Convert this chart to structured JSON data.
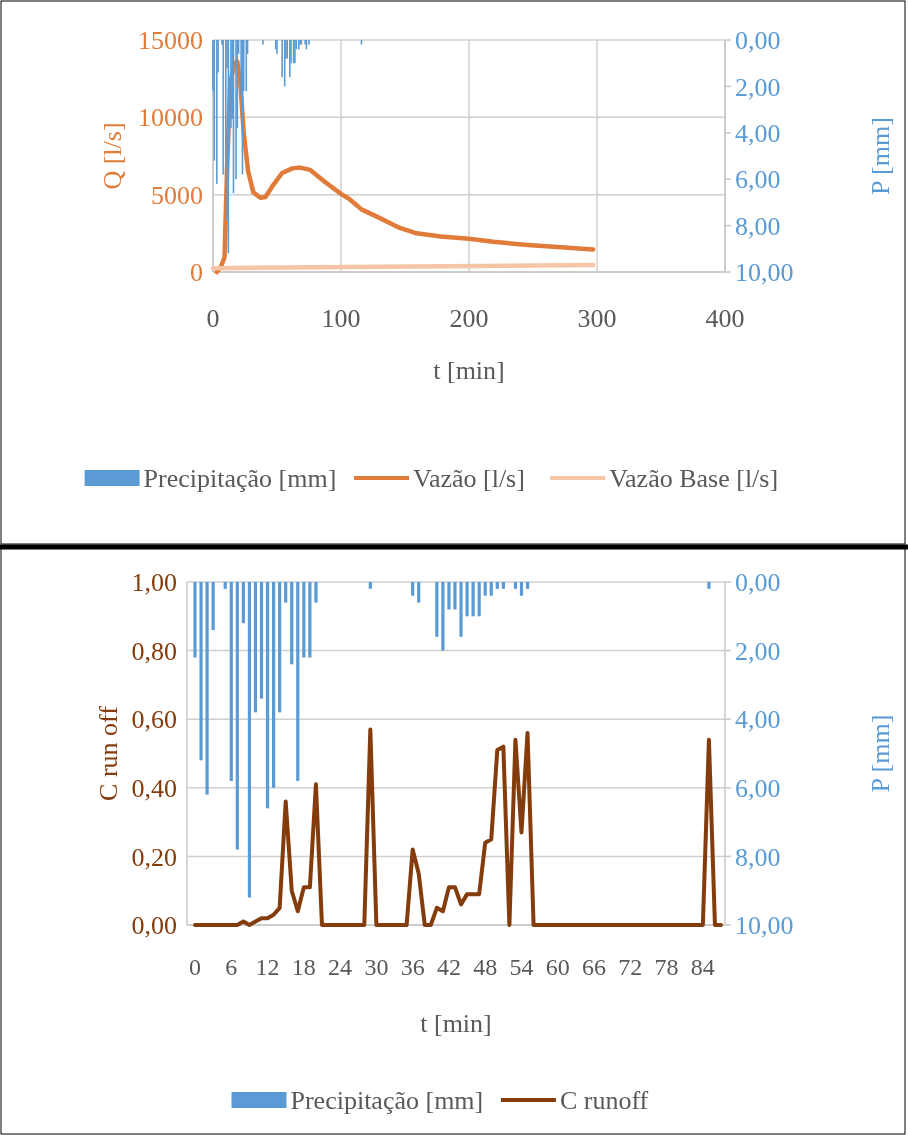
{
  "chart_data": [
    {
      "type": "line",
      "xlabel": "t [min]",
      "ylabel": "Q [l/s]",
      "y2label": "P [mm]",
      "xlim": [
        0,
        400
      ],
      "xticks": [
        0,
        100,
        200,
        300,
        400
      ],
      "ylim": [
        0,
        15000
      ],
      "yticks": [
        0,
        5000,
        10000,
        15000
      ],
      "y2lim": [
        10,
        0
      ],
      "y2ticks": [
        {
          "value": 0,
          "label": "0,00"
        },
        {
          "value": 2,
          "label": "2,00"
        },
        {
          "value": 4,
          "label": "4,00"
        },
        {
          "value": 6,
          "label": "6,00"
        },
        {
          "value": 8,
          "label": "8,00"
        },
        {
          "value": 10,
          "label": "10,00"
        }
      ],
      "grid": true,
      "legend": "bottom",
      "series": [
        {
          "name": "Precipitação [mm]",
          "type": "bar",
          "axis": "y2",
          "color": "#5b9bd5",
          "x": [
            0,
            1,
            3,
            4,
            7,
            8,
            10,
            11,
            12,
            14,
            15,
            16,
            18,
            19,
            20,
            22,
            23,
            24,
            26,
            27,
            39,
            49,
            50,
            54,
            56,
            57,
            58,
            60,
            61,
            63,
            64,
            65,
            67,
            68,
            69,
            72,
            73,
            75,
            116
          ],
          "values": [
            2.2,
            5.2,
            6.2,
            1.4,
            0.2,
            5.8,
            7.8,
            1.2,
            9.2,
            3.8,
            3.4,
            6.6,
            6.0,
            3.8,
            0.6,
            2.4,
            5.8,
            2.2,
            2.2,
            0.6,
            0.2,
            0.4,
            0.6,
            1.6,
            2.0,
            0.8,
            0.8,
            1.6,
            1.0,
            1.0,
            1.0,
            0.4,
            0.4,
            0.2,
            0.2,
            0.2,
            0.4,
            0.2,
            0.2
          ]
        },
        {
          "name": "Vazão [l/s]",
          "color": "#e07b39",
          "x": [
            3,
            6,
            9,
            11,
            13.5,
            17,
            19,
            21.5,
            24,
            27.5,
            31.5,
            37,
            41,
            46,
            54,
            62,
            68,
            76,
            87,
            100,
            106,
            116,
            130,
            146,
            159,
            178,
            200,
            219,
            246,
            272,
            297
          ],
          "values": [
            0,
            300,
            950,
            6700,
            12300,
            13500,
            13600,
            12050,
            8950,
            6500,
            5150,
            4800,
            4850,
            5500,
            6400,
            6700,
            6750,
            6600,
            5850,
            5050,
            4750,
            4050,
            3500,
            2850,
            2500,
            2300,
            2150,
            1950,
            1750,
            1600,
            1450
          ]
        },
        {
          "name": "Vazão Base [l/s]",
          "color": "#f5c6a5",
          "x": [
            0,
            297
          ],
          "values": [
            250,
            450
          ]
        }
      ]
    },
    {
      "type": "line",
      "xlabel": "t [min]",
      "ylabel": "C run off",
      "y2label": "P [mm]",
      "categories": [
        "0",
        null,
        null,
        null,
        null,
        null,
        "6",
        null,
        null,
        null,
        null,
        null,
        "12",
        null,
        null,
        null,
        null,
        null,
        "18",
        null,
        null,
        null,
        null,
        null,
        "24",
        null,
        null,
        null,
        null,
        null,
        "30",
        null,
        null,
        null,
        null,
        null,
        "36",
        null,
        null,
        null,
        null,
        null,
        "42",
        null,
        null,
        null,
        null,
        null,
        "48",
        null,
        null,
        null,
        null,
        null,
        "54",
        null,
        null,
        null,
        null,
        null,
        "60",
        null,
        null,
        null,
        null,
        null,
        "66",
        null,
        null,
        null,
        null,
        null,
        "72",
        null,
        null,
        null,
        null,
        null,
        "78",
        null,
        null,
        null,
        null,
        null,
        "84",
        null,
        null,
        null
      ],
      "ylim": [
        0,
        1
      ],
      "yticks": [
        {
          "value": 0,
          "label": "0,00"
        },
        {
          "value": 0.2,
          "label": "0,20"
        },
        {
          "value": 0.4,
          "label": "0,40"
        },
        {
          "value": 0.6,
          "label": "0,60"
        },
        {
          "value": 0.8,
          "label": "0,80"
        },
        {
          "value": 1,
          "label": "1,00"
        }
      ],
      "y2lim": [
        10,
        0
      ],
      "y2ticks": [
        {
          "value": 0,
          "label": "0,00"
        },
        {
          "value": 2,
          "label": "2,00"
        },
        {
          "value": 4,
          "label": "4,00"
        },
        {
          "value": 6,
          "label": "6,00"
        },
        {
          "value": 8,
          "label": "8,00"
        },
        {
          "value": 10,
          "label": "10,00"
        }
      ],
      "grid": "y",
      "legend": "bottom",
      "series": [
        {
          "name": "Precipitação [mm]",
          "type": "bar",
          "axis": "y2",
          "color": "#5b9bd5",
          "values": [
            2.2,
            5.2,
            6.2,
            1.4,
            null,
            0.2,
            5.8,
            7.8,
            1.2,
            9.2,
            3.8,
            3.4,
            6.6,
            6.0,
            3.8,
            0.6,
            2.4,
            5.8,
            2.2,
            2.2,
            0.6,
            null,
            null,
            null,
            null,
            null,
            null,
            null,
            null,
            0.2,
            null,
            null,
            null,
            null,
            null,
            null,
            0.4,
            0.6,
            null,
            null,
            1.6,
            2.0,
            0.8,
            0.8,
            1.6,
            1.0,
            1.0,
            1.0,
            0.4,
            0.4,
            0.2,
            0.2,
            null,
            0.2,
            0.4,
            0.2,
            null,
            null,
            null,
            null,
            null,
            null,
            null,
            null,
            null,
            null,
            null,
            null,
            null,
            null,
            null,
            null,
            null,
            null,
            null,
            null,
            null,
            null,
            null,
            null,
            null,
            null,
            null,
            null,
            null,
            0.2,
            null,
            null
          ]
        },
        {
          "name": "C runoff",
          "color": "#843c0c",
          "values": [
            0,
            0,
            0,
            0,
            0,
            0,
            0,
            0,
            0.01,
            0,
            0.01,
            0.02,
            0.02,
            0.03,
            0.05,
            0.36,
            0.1,
            0.04,
            0.11,
            0.11,
            0.41,
            0,
            0,
            0,
            0,
            0,
            0,
            0,
            0,
            0.57,
            0,
            0,
            0,
            0,
            0,
            0,
            0.22,
            0.15,
            0,
            0,
            0.05,
            0.04,
            0.11,
            0.11,
            0.06,
            0.09,
            0.09,
            0.09,
            0.24,
            0.25,
            0.51,
            0.52,
            0,
            0.54,
            0.27,
            0.56,
            0,
            0,
            0,
            0,
            0,
            0,
            0,
            0,
            0,
            0,
            0,
            0,
            0,
            0,
            0,
            0,
            0,
            0,
            0,
            0,
            0,
            0,
            0,
            0,
            0,
            0,
            0,
            0,
            0,
            0.54,
            0,
            0
          ]
        }
      ]
    }
  ]
}
